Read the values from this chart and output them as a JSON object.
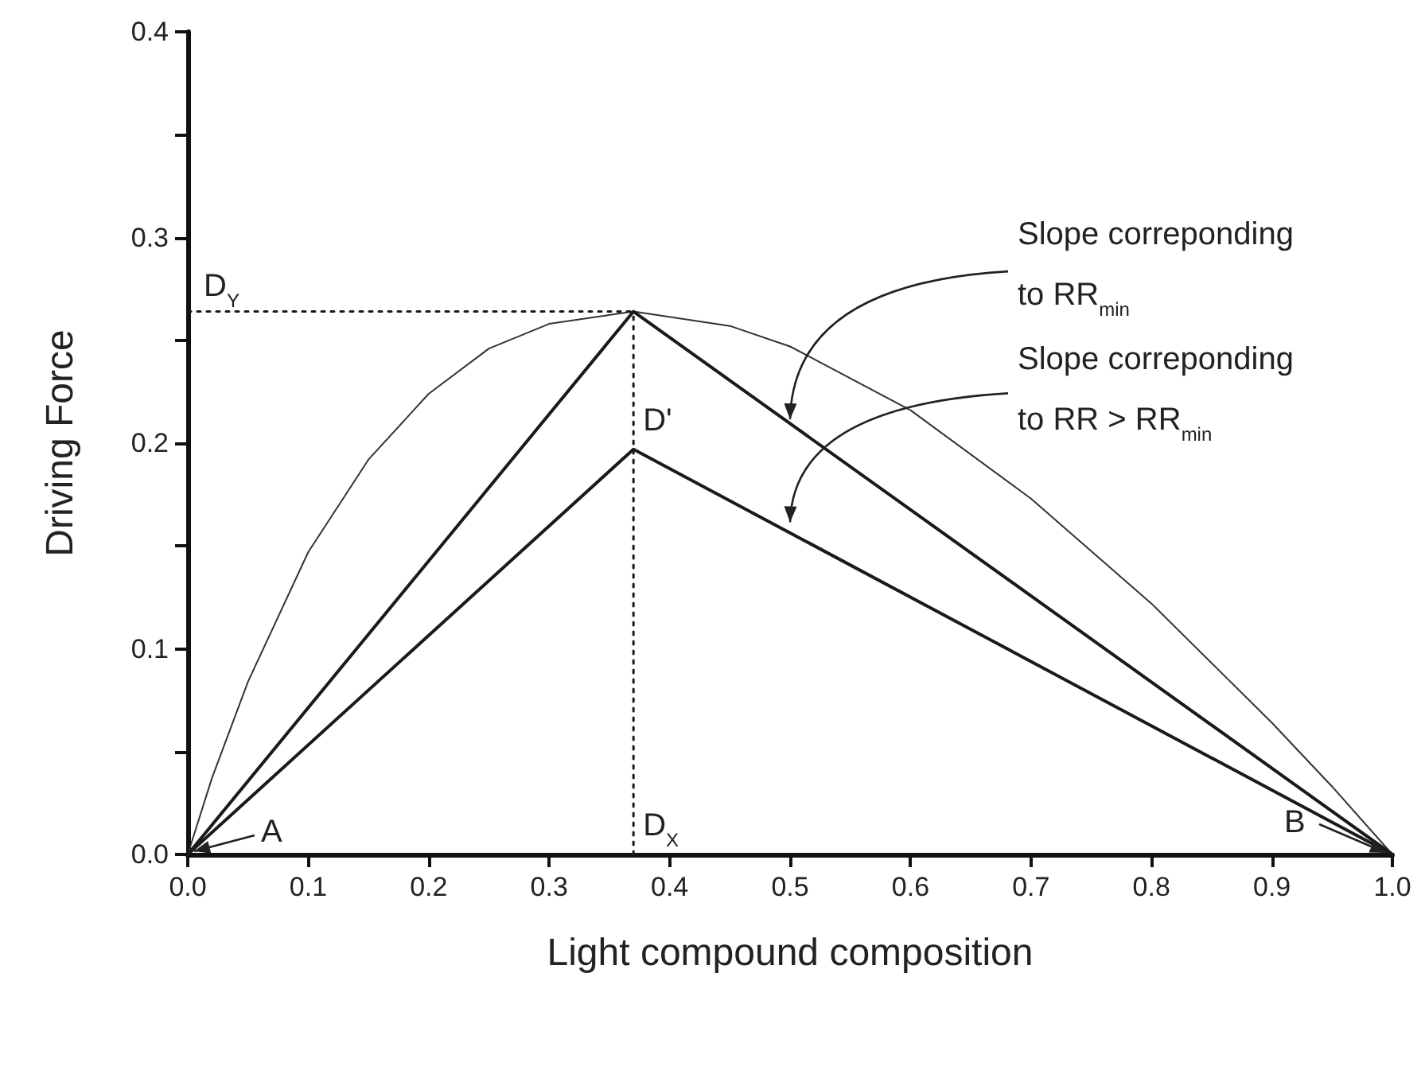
{
  "chart_data": {
    "type": "line",
    "xlabel": "Light compound composition",
    "ylabel": "Driving Force",
    "xlim": [
      0,
      1
    ],
    "ylim": [
      0,
      0.4
    ],
    "xticks": [
      {
        "value": 0,
        "label": "0.0"
      },
      0.1,
      0.2,
      0.3,
      0.4,
      0.5,
      0.6,
      0.7,
      0.8,
      0.9,
      {
        "value": 1,
        "label": "1.0"
      }
    ],
    "yticks": [
      {
        "value": 0,
        "label": "0.0"
      },
      {
        "value": 0.05,
        "label": null
      },
      0.1,
      {
        "value": 0.15,
        "label": null
      },
      0.2,
      {
        "value": 0.25,
        "label": null
      },
      0.3,
      {
        "value": 0.35,
        "label": null
      },
      0.4
    ],
    "marker": "none",
    "series": [
      {
        "color": "#333333",
        "line_style": "solid",
        "x": [
          0,
          0.02,
          0.05,
          0.1,
          0.15,
          0.2,
          0.25,
          0.3,
          0.37,
          0.45,
          0.5,
          0.6,
          0.7,
          0.8,
          0.9,
          0.95,
          1
        ],
        "values": [
          0,
          0.037,
          0.084,
          0.147,
          0.192,
          0.224,
          0.246,
          0.258,
          0.264,
          0.257,
          0.247,
          0.216,
          0.173,
          0.122,
          0.064,
          0.033,
          0
        ]
      },
      {
        "color": "#1a1a1a",
        "line_style": "solid",
        "x": [
          0,
          0.37,
          1
        ],
        "values": [
          0,
          0.264,
          0
        ]
      },
      {
        "color": "#1a1a1a",
        "line_style": "solid",
        "x": [
          0,
          0.37,
          1
        ],
        "values": [
          0,
          0.197,
          0
        ]
      },
      {
        "color": "#1a1a1a",
        "line_style": "dotted",
        "x": [
          0,
          0.37
        ],
        "values": [
          0.264,
          0.264
        ]
      },
      {
        "color": "#1a1a1a",
        "line_style": "dotted",
        "x": [
          0.37,
          0.37
        ],
        "values": [
          0,
          0.264
        ]
      }
    ],
    "annotations": [
      {
        "text": "D$_{Y}$",
        "x": 0,
        "y": 0.264
      },
      {
        "text": "D'",
        "x": 0.37,
        "y": 0.197
      },
      {
        "text": "D$_{X}$",
        "x": 0.37,
        "y": 0
      },
      {
        "text": "A",
        "x": 0,
        "y": 0
      },
      {
        "text": "B",
        "x": 1,
        "y": 0
      },
      {
        "text": "Slope correponding to RR$_{min}$",
        "x": 0.5,
        "y": 0.21
      },
      {
        "text": "Slope correponding to RR > RR$_{min}$",
        "x": 0.5,
        "y": 0.16
      }
    ]
  }
}
